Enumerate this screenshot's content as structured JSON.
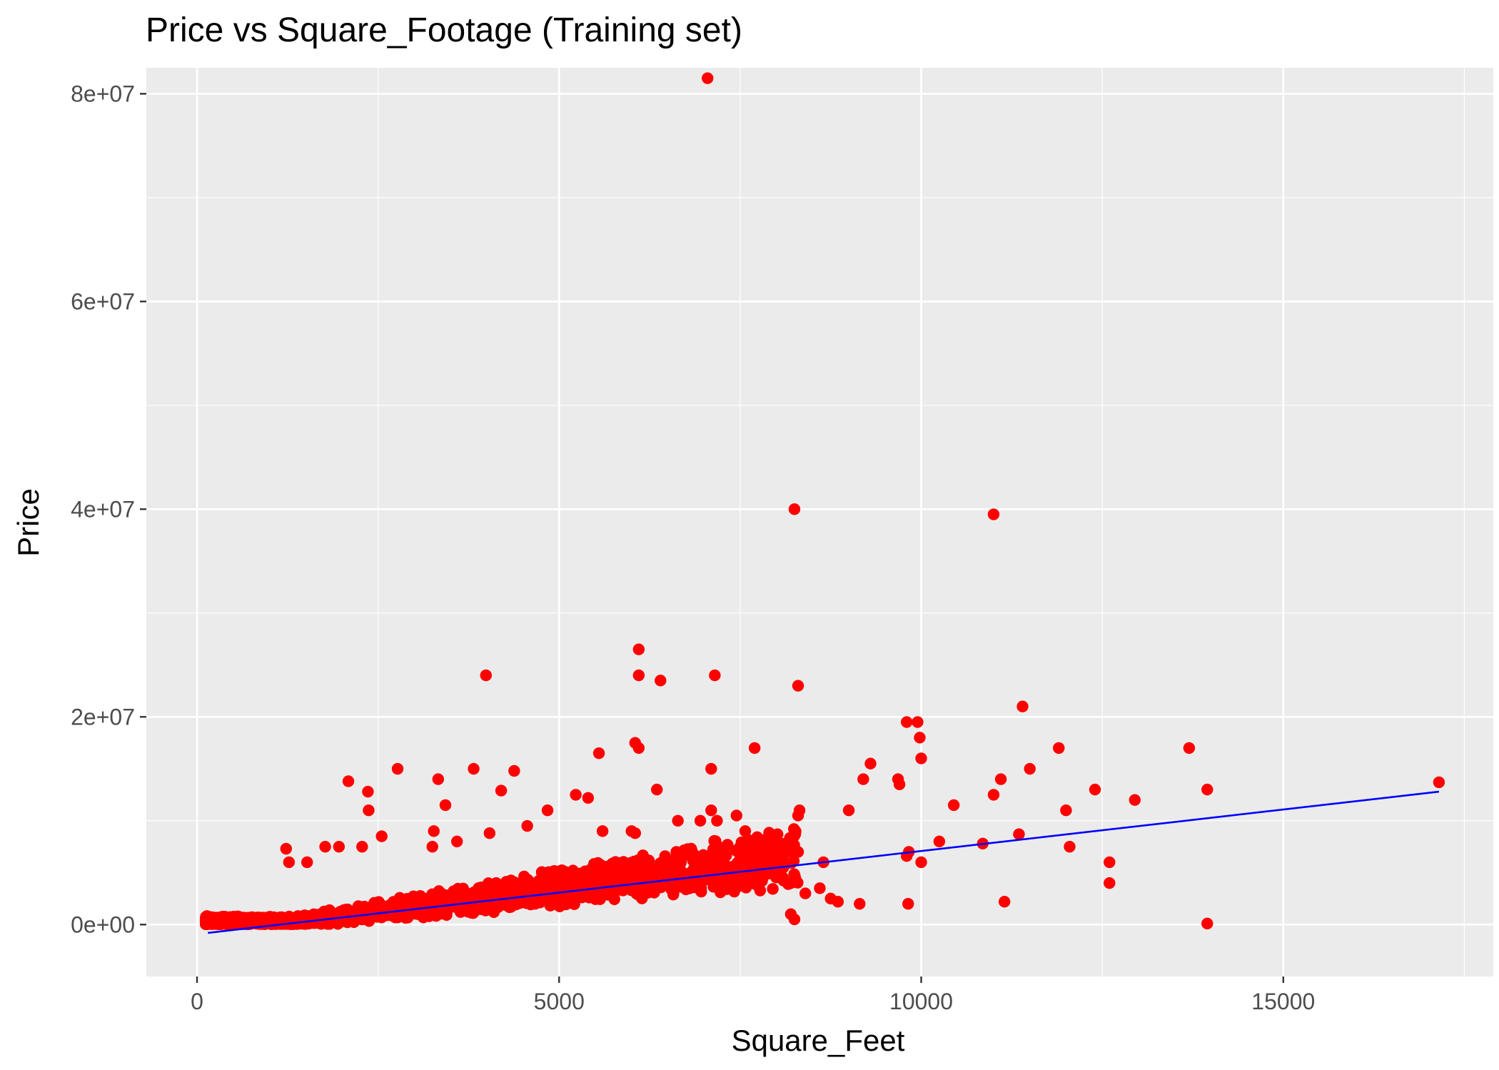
{
  "chart_data": {
    "type": "scatter",
    "title": "Price vs Square_Footage (Training set)",
    "xlabel": "Square_Feet",
    "ylabel": "Price",
    "xlim": [
      -700,
      17900
    ],
    "ylim": [
      -5000000,
      82500000
    ],
    "x_ticks": [
      0,
      5000,
      10000,
      15000
    ],
    "x_tick_labels": [
      "0",
      "5000",
      "10000",
      "15000"
    ],
    "y_ticks": [
      0,
      20000000,
      40000000,
      60000000,
      80000000
    ],
    "y_tick_labels": [
      "0e+00",
      "2e+07",
      "4e+07",
      "6e+07",
      "8e+07"
    ],
    "grid": true,
    "legend": "none",
    "colors": {
      "panel_background": "#EBEBEB",
      "grid": "#FFFFFF",
      "points": "#FF0000",
      "fit_line": "#0000FF"
    },
    "series": [
      {
        "kind": "points",
        "x": [
          7050,
          8250,
          11000,
          6100,
          6100,
          6400,
          3990,
          7150,
          8300,
          11400,
          9800,
          9950,
          9980,
          10000,
          7700,
          6050,
          6100,
          11900,
          13700,
          9300,
          9680,
          9700,
          12400,
          11100,
          11500,
          9200,
          5550,
          2770,
          3820,
          4380,
          4200,
          3330,
          2090,
          17150,
          13950,
          12950,
          11000,
          12000,
          10450,
          8320,
          8300,
          9000,
          6350,
          5230,
          5400,
          4840,
          3430,
          2360,
          2370,
          3270,
          3250,
          2550,
          1230,
          1270,
          1520,
          1770,
          1960,
          2280,
          3590,
          4040,
          4560,
          5600,
          6000,
          6050,
          6640,
          7100,
          7450,
          7180,
          7570,
          7100,
          6950,
          9830,
          9800,
          10000,
          10250,
          10850,
          11350,
          12050,
          12600,
          11150,
          8200,
          8400,
          8600,
          8750,
          8850,
          8250,
          8300,
          8650,
          9150,
          9820,
          13950,
          12600
        ],
        "y": [
          81500000,
          40000000,
          39500000,
          26500000,
          24000000,
          23500000,
          24000000,
          24000000,
          23000000,
          21000000,
          19500000,
          19500000,
          18000000,
          16000000,
          17000000,
          17500000,
          17000000,
          17000000,
          17000000,
          15500000,
          14000000,
          13500000,
          13000000,
          14000000,
          15000000,
          14000000,
          16500000,
          15000000,
          15000000,
          14800000,
          12900000,
          14000000,
          13800000,
          13700000,
          13000000,
          12000000,
          12500000,
          11000000,
          11500000,
          11000000,
          10500000,
          11000000,
          13000000,
          12500000,
          12200000,
          11000000,
          11500000,
          12800000,
          11000000,
          9000000,
          7500000,
          8500000,
          7300000,
          6000000,
          6000000,
          7500000,
          7500000,
          7500000,
          8000000,
          8800000,
          9500000,
          9000000,
          9000000,
          8800000,
          10000000,
          11000000,
          10500000,
          10000000,
          9000000,
          15000000,
          10000000,
          7000000,
          6600000,
          6000000,
          8000000,
          7800000,
          8700000,
          7500000,
          4000000,
          2200000,
          1000000,
          3000000,
          3500000,
          2500000,
          2200000,
          500000,
          7000000,
          6000000,
          2000000,
          2000000,
          100000,
          6000000
        ]
      },
      {
        "kind": "dense_cloud",
        "x_range": [
          120,
          8300
        ],
        "note_free": true
      },
      {
        "kind": "fit_line",
        "x": [
          150,
          17150
        ],
        "y": [
          -800000,
          12800000
        ]
      }
    ]
  }
}
